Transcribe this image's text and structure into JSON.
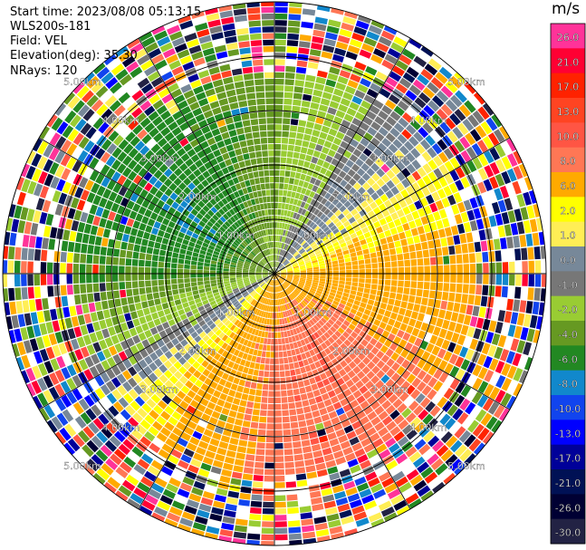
{
  "header": {
    "start_time": "Start time: 2023/08/08 05:13:15",
    "instrument": "WLS200s-181",
    "field": "Field: VEL",
    "elevation": "Elevation(deg): 35.30",
    "nrays": "NRays: 120"
  },
  "colorbar": {
    "unit": "m/s",
    "ticks": [
      "26.0",
      "21.0",
      "17.0",
      "13.0",
      "10.0",
      "8.0",
      "6.0",
      "2.0",
      "1.0",
      "0.0",
      "-1.0",
      "-2.0",
      "-4.0",
      "-6.0",
      "-8.0",
      "-10.0",
      "-13.0",
      "-17.0",
      "-21.0",
      "-26.0",
      "-30.0"
    ],
    "colors": [
      "#ff3399",
      "#ff0033",
      "#ff2200",
      "#ff4422",
      "#ff5544",
      "#ff7755",
      "#ffaa00",
      "#ffff00",
      "#ffee55",
      "#778899",
      "#777777",
      "#99cc33",
      "#669922",
      "#228822",
      "#1188cc",
      "#1144ee",
      "#0000ff",
      "#000099",
      "#001155",
      "#000033",
      "#222244"
    ]
  },
  "chart_data": {
    "type": "heatmap",
    "title": "",
    "field": "VEL",
    "projection": "polar PPI (plan position indicator)",
    "nrays": 120,
    "range_ring_labels": [
      "1.00km",
      "2.00km",
      "3.00km",
      "4.00km",
      "5.00km"
    ],
    "range_rings_km": [
      1,
      2,
      3,
      4,
      5
    ],
    "max_range_km": 5.0,
    "velocity_range": [
      -30.0,
      26.0
    ],
    "unit": "m/s",
    "sectors": [
      {
        "azimuth_range": [
          225,
          30
        ],
        "description": "negative velocities (green/blue), strongest around 300-330 deg",
        "value_range": [
          -10,
          -2
        ]
      },
      {
        "azimuth_range": [
          30,
          90
        ],
        "description": "near zero (gray/yellow-green)",
        "value_range": [
          -2,
          2
        ]
      },
      {
        "azimuth_range": [
          90,
          225
        ],
        "description": "positive velocities (yellow/orange/red), strongest around 150-180 deg",
        "value_range": [
          2,
          10
        ]
      }
    ],
    "noise_beyond_km": 3.7,
    "grid": true
  }
}
